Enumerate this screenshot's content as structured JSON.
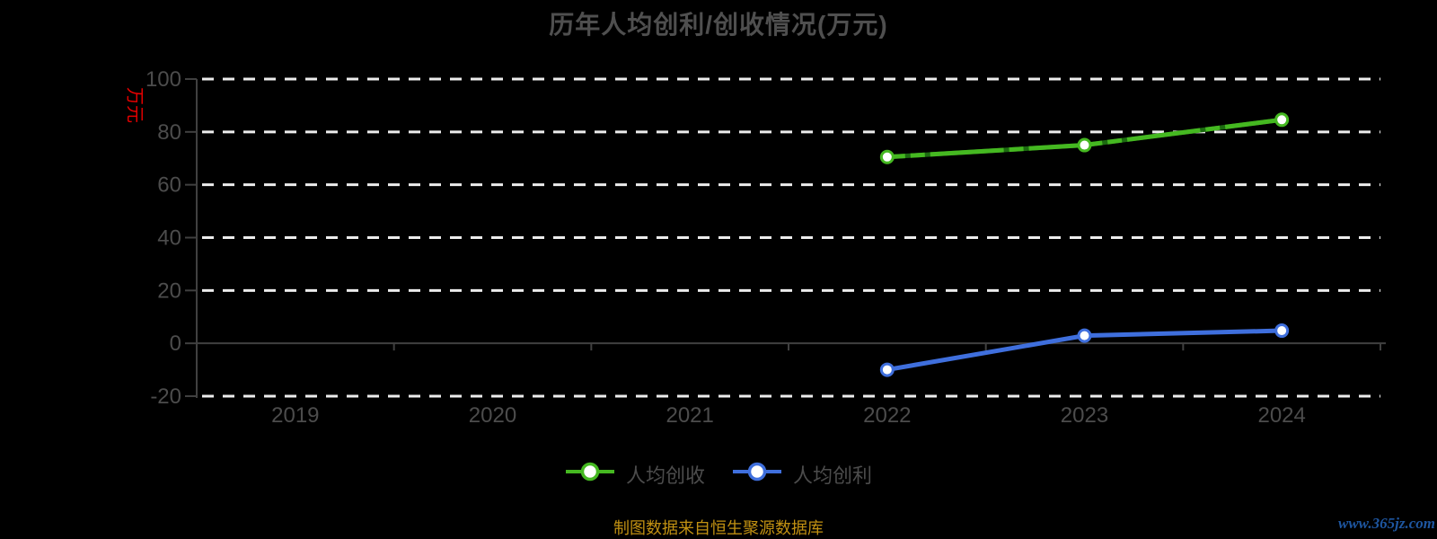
{
  "title": "历年人均创利/创收情况(万元)",
  "y_axis_name": "万元",
  "footer": {
    "source_note": "制图数据来自恒生聚源数据库",
    "watermark": "www.365jz.com"
  },
  "colors": {
    "background": "#000000",
    "title": "#4f4f4f",
    "axis_label": "#4c4c4c",
    "axis_line": "#404040",
    "gridline": "#ececec",
    "y_name_red": "#e60000",
    "caption_gold": "#c19112",
    "watermark_blue": "#1e56a0",
    "series_green": "#45b821",
    "series_green_dark": "#1c6b10",
    "series_blue": "#3f6fdd",
    "marker_fill": "#ffffff"
  },
  "chart_data": {
    "type": "line",
    "title": "历年人均创利/创收情况(万元)",
    "categories": [
      "2019",
      "2020",
      "2021",
      "2022",
      "2023",
      "2024"
    ],
    "series": [
      {
        "name": "人均创收",
        "color": "#45b821",
        "values": [
          null,
          null,
          null,
          70.5,
          75.0,
          84.6
        ]
      },
      {
        "name": "人均创利",
        "color": "#3f6fdd",
        "values": [
          null,
          null,
          null,
          -10.0,
          2.9,
          4.8
        ]
      }
    ],
    "xlabel": "",
    "ylabel": "万元",
    "ylim": [
      -20,
      100
    ],
    "y_ticks": [
      100,
      80,
      60,
      40,
      20,
      0,
      -20
    ],
    "grid": "dashed-white-horizontal",
    "legend_position": "bottom",
    "marker": "white-filled-circle"
  }
}
